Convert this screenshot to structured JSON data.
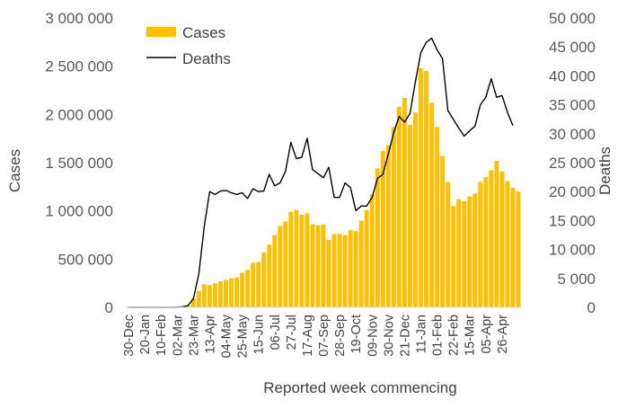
{
  "chart_data": {
    "type": "bar+line",
    "xlabel": "Reported week commencing",
    "ylabel_left": "Cases",
    "ylabel_right": "Deaths",
    "ylim_left": [
      0,
      3000000
    ],
    "ylim_right": [
      0,
      50000
    ],
    "left_ticks": [
      "0",
      "500 000",
      "1 000 000",
      "1 500 000",
      "2 000 000",
      "2 500 000",
      "3 000 000"
    ],
    "right_ticks": [
      "0",
      "5 000",
      "10 000",
      "15 000",
      "20 000",
      "25 000",
      "30 000",
      "35 000",
      "40 000",
      "45 000",
      "50 000"
    ],
    "x_tick_labels": [
      "30-Dec",
      "20-Jan",
      "10-Feb",
      "02-Mar",
      "23-Mar",
      "13-Apr",
      "04-May",
      "25-May",
      "15-Jun",
      "06-Jul",
      "27-Jul",
      "17-Aug",
      "07-Sep",
      "28-Sep",
      "19-Oct",
      "09-Nov",
      "30-Nov",
      "21-Dec",
      "11-Jan",
      "01-Feb",
      "22-Feb",
      "15-Mar",
      "05-Apr",
      "26-Apr"
    ],
    "grid": false,
    "legend_position": "top-left",
    "colors": {
      "cases": "#FFC000",
      "deaths": "#000000",
      "axis": "#D9D9D9"
    },
    "series": [
      {
        "name": "Cases",
        "type": "bar",
        "axis": "left",
        "values": [
          0,
          0,
          0,
          0,
          0,
          0,
          0,
          0,
          0,
          0,
          3000,
          20000,
          90000,
          170000,
          240000,
          230000,
          250000,
          270000,
          285000,
          300000,
          310000,
          360000,
          390000,
          460000,
          470000,
          570000,
          650000,
          750000,
          840000,
          890000,
          990000,
          1010000,
          960000,
          975000,
          860000,
          850000,
          860000,
          700000,
          760000,
          760000,
          750000,
          800000,
          790000,
          900000,
          1010000,
          1170000,
          1440000,
          1620000,
          1680000,
          1870000,
          2080000,
          2170000,
          1890000,
          2020000,
          2480000,
          2450000,
          2120000,
          1870000,
          1570000,
          1300000,
          1050000,
          1120000,
          1100000,
          1150000,
          1180000,
          1300000,
          1350000,
          1420000,
          1520000,
          1410000,
          1310000,
          1240000,
          1200000
        ]
      },
      {
        "name": "Deaths",
        "type": "line",
        "axis": "right",
        "values": [
          0,
          0,
          0,
          0,
          0,
          0,
          0,
          0,
          0,
          0,
          100,
          300,
          1500,
          5800,
          14000,
          20000,
          19500,
          20100,
          20200,
          19800,
          19500,
          19800,
          18800,
          20500,
          20000,
          20100,
          23000,
          21000,
          21500,
          23500,
          28500,
          25700,
          25900,
          29200,
          23800,
          23100,
          22400,
          24200,
          19000,
          19000,
          21500,
          20700,
          16700,
          17500,
          17500,
          19000,
          22300,
          23000,
          26500,
          30200,
          33000,
          32000,
          33500,
          39000,
          44000,
          45800,
          46500,
          44500,
          43000,
          34000,
          32500,
          31000,
          29600,
          30500,
          31300,
          35000,
          36300,
          39500,
          36300,
          36600,
          33700,
          31400
        ]
      }
    ]
  }
}
